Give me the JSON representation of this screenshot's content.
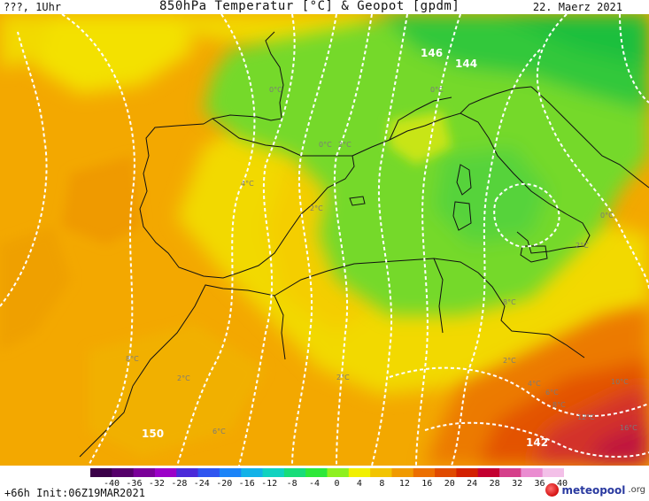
{
  "header": {
    "left_text": "???, 1Uhr",
    "title": "850hPa Temperatur [°C] & Geopot [gpdm]",
    "date": "22. Maerz 2021"
  },
  "footer": {
    "run_label": "+66h Init:06Z19MAR2021",
    "brand": "meteopool",
    "brand_suffix": ".org"
  },
  "colorbar": {
    "ticks": [
      "-40",
      "-36",
      "-32",
      "-28",
      "-24",
      "-20",
      "-16",
      "-12",
      "-8",
      "-4",
      "0",
      "4",
      "8",
      "12",
      "16",
      "20",
      "24",
      "28",
      "32",
      "36",
      "40"
    ],
    "colors": [
      "#3a0048",
      "#55006a",
      "#7a0099",
      "#9b00c8",
      "#4b2ad9",
      "#2f55f0",
      "#1b84f8",
      "#13b2e8",
      "#11d2c0",
      "#18dd7a",
      "#2ee83a",
      "#8ef020",
      "#f1f000",
      "#f2c400",
      "#f09a00",
      "#ec6f00",
      "#e04a00",
      "#d32000",
      "#c40030",
      "#d5408a",
      "#ea8cd0",
      "#f3c0e8"
    ]
  },
  "map_labels": {
    "geopot": [
      "146",
      "144",
      "150",
      "142"
    ],
    "isotherms": [
      "0°C",
      "0°C",
      "4°C",
      "2°C",
      "2°C",
      "0°C",
      "2°C",
      "8°C",
      "2°C",
      "4°C",
      "6°C",
      "8°C",
      "10°C",
      "12°C",
      "16°C",
      "8°C",
      "2°C",
      "6°C",
      "0°C",
      "2°C"
    ]
  },
  "colors": {
    "sea_orange": "#f2a600",
    "land_yellow": "#f5d400",
    "green": "#56d33a",
    "deep_green": "#1fc23c",
    "hot_red": "#c4183a"
  }
}
